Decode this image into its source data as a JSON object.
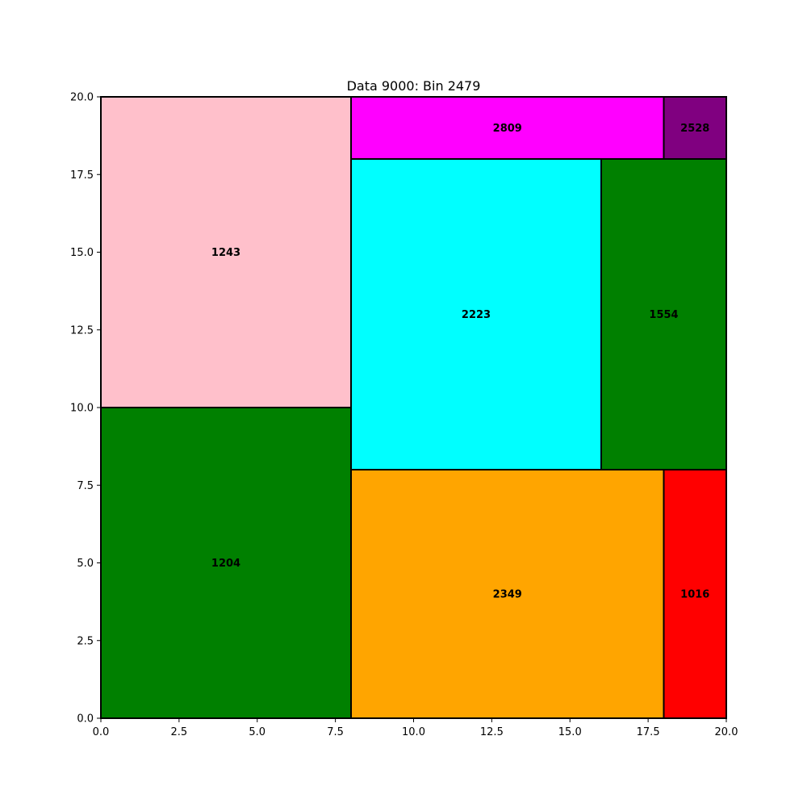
{
  "chart_data": {
    "type": "bin_packing",
    "title": "Data 9000: Bin 2479",
    "xlim": [
      0,
      20
    ],
    "ylim": [
      0,
      20
    ],
    "xticks": [
      "0.0",
      "2.5",
      "5.0",
      "7.5",
      "10.0",
      "12.5",
      "15.0",
      "17.5",
      "20.0"
    ],
    "yticks": [
      "0.0",
      "2.5",
      "5.0",
      "7.5",
      "10.0",
      "12.5",
      "15.0",
      "17.5",
      "20.0"
    ],
    "xlabel": "",
    "ylabel": "",
    "grid": false,
    "legend": "none",
    "items": [
      {
        "label": "1243",
        "x0": 0,
        "y0": 10,
        "x1": 8,
        "y1": 20,
        "color": "#ffc0cb"
      },
      {
        "label": "1204",
        "x0": 0,
        "y0": 0,
        "x1": 8,
        "y1": 10,
        "color": "#008000"
      },
      {
        "label": "2809",
        "x0": 8,
        "y0": 18,
        "x1": 18,
        "y1": 20,
        "color": "#ff00ff"
      },
      {
        "label": "2528",
        "x0": 18,
        "y0": 18,
        "x1": 20,
        "y1": 20,
        "color": "#800080"
      },
      {
        "label": "2223",
        "x0": 8,
        "y0": 8,
        "x1": 16,
        "y1": 18,
        "color": "#00ffff"
      },
      {
        "label": "1554",
        "x0": 16,
        "y0": 8,
        "x1": 20,
        "y1": 18,
        "color": "#008000"
      },
      {
        "label": "2349",
        "x0": 8,
        "y0": 0,
        "x1": 18,
        "y1": 8,
        "color": "#ffa500"
      },
      {
        "label": "1016",
        "x0": 18,
        "y0": 0,
        "x1": 20,
        "y1": 8,
        "color": "#ff0000"
      }
    ]
  }
}
